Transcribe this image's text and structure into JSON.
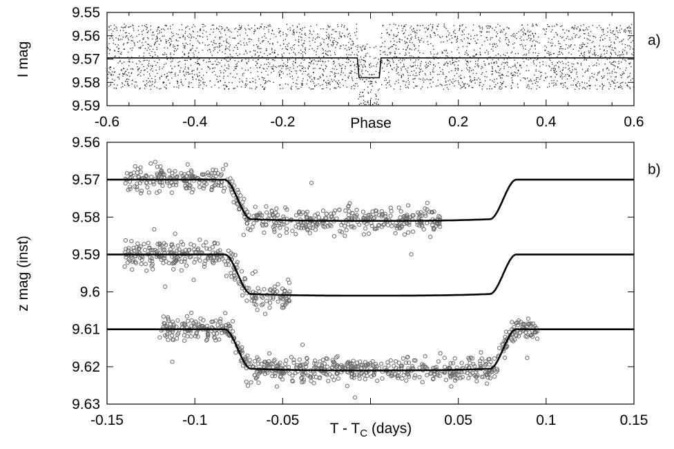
{
  "chart_data": [
    {
      "panel": "a)",
      "type": "scatter",
      "xlabel": "Phase",
      "ylabel": "I mag",
      "xlim": [
        -0.6,
        0.6
      ],
      "ylim": [
        9.55,
        9.59
      ],
      "y_inverted": true,
      "xticks": [
        -0.6,
        -0.4,
        -0.2,
        0.2,
        0.4,
        0.6
      ],
      "xtick_labels": [
        "-0.6",
        "-0.4",
        "-0.2",
        "0.2",
        "0.4",
        "0.6"
      ],
      "yticks": [
        9.55,
        9.56,
        9.57,
        9.58,
        9.59
      ],
      "ytick_labels": [
        "9.55",
        "9.56",
        "9.57",
        "9.58",
        "9.59"
      ],
      "series": [
        {
          "style": "dots",
          "baseline_mag": 9.569,
          "scatter_half_range": 0.014,
          "phase_range": [
            -0.6,
            0.6
          ],
          "approx_count": 3200
        },
        {
          "style": "line",
          "baseline_mag": 9.5695,
          "transit_depth": 0.0085,
          "transit_center_phase": -0.003,
          "transit_half_width_phase": 0.027,
          "ingress_duration_phase": 0.004
        }
      ]
    },
    {
      "panel": "b)",
      "type": "scatter",
      "xlabel": "T - T",
      "xlabel_subscript": "C",
      "xlabel_suffix": " (days)",
      "ylabel": "z mag (inst)",
      "xlim": [
        -0.15,
        0.15
      ],
      "ylim": [
        9.56,
        9.63
      ],
      "y_inverted": true,
      "xticks": [
        -0.15,
        -0.1,
        -0.05,
        0.05,
        0.1,
        0.15
      ],
      "xtick_labels": [
        "-0.15",
        "-0.1",
        "-0.05",
        "0.05",
        "0.1",
        "0.15"
      ],
      "yticks": [
        9.56,
        9.57,
        9.58,
        9.59,
        9.6,
        9.61,
        9.62,
        9.63
      ],
      "ytick_labels": [
        "9.56",
        "9.57",
        "9.58",
        "9.59",
        "9.6",
        "9.61",
        "9.62",
        "9.63"
      ],
      "model": {
        "depth": 0.011,
        "contact_1": -0.083,
        "contact_2": -0.068,
        "contact_3": 0.068,
        "contact_4": 0.083,
        "x_range": [
          -0.15,
          0.15
        ]
      },
      "series": [
        {
          "style": "circles",
          "baseline_mag": 9.57,
          "x_range": [
            -0.14,
            0.04
          ],
          "scatter_sd": 0.0018,
          "approx_count": 520
        },
        {
          "style": "circles",
          "baseline_mag": 9.59,
          "x_range": [
            -0.14,
            -0.045
          ],
          "scatter_sd": 0.0018,
          "approx_count": 300
        },
        {
          "style": "circles",
          "baseline_mag": 9.61,
          "x_range": [
            -0.12,
            0.095
          ],
          "scatter_sd": 0.0016,
          "approx_count": 700
        }
      ]
    }
  ]
}
